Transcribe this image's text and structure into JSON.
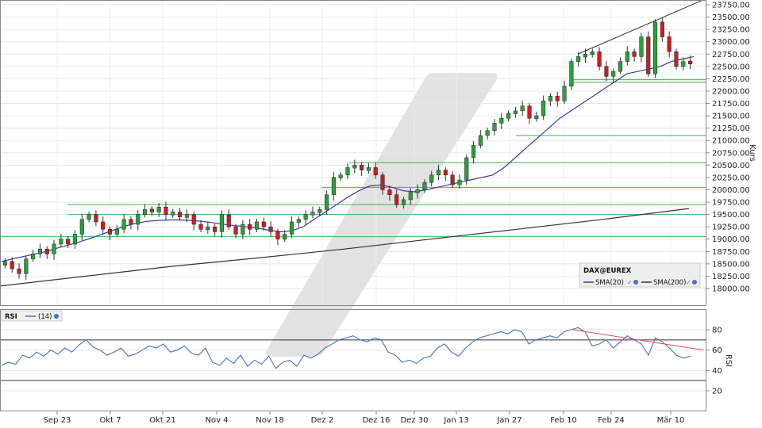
{
  "chart_data": [
    {
      "type": "candlestick",
      "instrument": "DAX@EUREX",
      "ylabel": "Kurs",
      "ylim": [
        17750,
        23800
      ],
      "y_ticks": [
        "18000.00",
        "18250.00",
        "18500.00",
        "18750.00",
        "19000.00",
        "19250.00",
        "19500.00",
        "19750.00",
        "20000.00",
        "20250.00",
        "20500.00",
        "20750.00",
        "21000.00",
        "21250.00",
        "21500.00",
        "21750.00",
        "22000.00",
        "22250.00",
        "22500.00",
        "22750.00",
        "23000.00",
        "23250.00",
        "23500.00",
        "23750.00"
      ],
      "x_labels": [
        "Sep 23",
        "Okt 7",
        "Okt 21",
        "Nov 4",
        "Nov 18",
        "Dez 2",
        "Dez 16",
        "Dez 30",
        "Jan 13",
        "Jan 27",
        "Feb 10",
        "Feb 24",
        "Mär 10"
      ],
      "legend": {
        "title": "DAX@EUREX",
        "items": [
          {
            "name": "SMA(20)",
            "color": "#3a3aa8"
          },
          {
            "name": "SMA(200)",
            "color": "#333333"
          }
        ]
      },
      "candles_close": [
        18550,
        18400,
        18300,
        18600,
        18700,
        18800,
        18700,
        18900,
        19000,
        18900,
        19100,
        19400,
        19500,
        19350,
        19200,
        19100,
        19200,
        19400,
        19300,
        19500,
        19600,
        19550,
        19650,
        19500,
        19550,
        19450,
        19500,
        19300,
        19200,
        19250,
        19150,
        19500,
        19250,
        19100,
        19300,
        19200,
        19350,
        19250,
        19150,
        19000,
        19100,
        19350,
        19400,
        19500,
        19550,
        19600,
        19900,
        20250,
        20300,
        20450,
        20500,
        20400,
        20450,
        20300,
        20000,
        19900,
        19700,
        19800,
        19950,
        20000,
        20150,
        20300,
        20400,
        20300,
        20100,
        20200,
        20650,
        20900,
        21100,
        21200,
        21350,
        21450,
        21550,
        21600,
        21700,
        21450,
        21500,
        21800,
        21900,
        21800,
        22100,
        22600,
        22700,
        22750,
        22800,
        22500,
        22300,
        22400,
        22600,
        22800,
        22700,
        23100,
        22350,
        23400,
        23100,
        22800,
        22500,
        22600,
        22550
      ],
      "candles_dir": [
        "u",
        "d",
        "d",
        "u",
        "u",
        "u",
        "d",
        "u",
        "u",
        "d",
        "u",
        "u",
        "u",
        "d",
        "d",
        "d",
        "u",
        "u",
        "d",
        "u",
        "u",
        "d",
        "u",
        "d",
        "u",
        "d",
        "u",
        "d",
        "d",
        "u",
        "d",
        "u",
        "d",
        "d",
        "u",
        "d",
        "u",
        "d",
        "d",
        "d",
        "u",
        "u",
        "u",
        "u",
        "u",
        "u",
        "u",
        "u",
        "u",
        "u",
        "u",
        "d",
        "u",
        "d",
        "d",
        "d",
        "d",
        "u",
        "u",
        "u",
        "u",
        "u",
        "u",
        "d",
        "d",
        "u",
        "u",
        "u",
        "u",
        "u",
        "u",
        "u",
        "u",
        "u",
        "u",
        "d",
        "u",
        "u",
        "u",
        "d",
        "u",
        "u",
        "u",
        "u",
        "u",
        "d",
        "d",
        "u",
        "u",
        "u",
        "d",
        "u",
        "d",
        "u",
        "d",
        "d",
        "d",
        "u",
        "d"
      ],
      "sma20": [
        18550,
        18600,
        18650,
        18700,
        18750,
        18820,
        18880,
        18950,
        19020,
        19100,
        19180,
        19260,
        19320,
        19360,
        19380,
        19390,
        19390,
        19380,
        19360,
        19330,
        19300,
        19270,
        19250,
        19220,
        19180,
        19150,
        19170,
        19250,
        19400,
        19550,
        19700,
        19850,
        19980,
        20080,
        20100,
        20050,
        19980,
        19960,
        20000,
        20050,
        20100,
        20150,
        20200,
        20250,
        20300,
        20450,
        20650,
        20850,
        21050,
        21250,
        21450,
        21600,
        21750,
        21900,
        22050,
        22200,
        22350,
        22400,
        22450,
        22500,
        22600,
        22650,
        22700
      ],
      "sma200": [
        18050,
        18250,
        18450,
        18620,
        18800,
        19000,
        19200,
        19400,
        19620
      ],
      "support_lines": [
        19050,
        19500,
        19700,
        20050,
        20550,
        21100,
        22180,
        22230
      ],
      "trend_line": {
        "from": 22750,
        "to": 23850
      }
    },
    {
      "type": "line",
      "instrument": "RSI",
      "legend": {
        "title": "RSI",
        "items": [
          {
            "name": "(14)",
            "color": "#4a6fc7"
          }
        ]
      },
      "ylabel": "RSI",
      "ylim": [
        10,
        90
      ],
      "y_ticks": [
        20,
        40,
        60,
        80
      ],
      "thresholds": [
        70,
        30
      ],
      "rsi": [
        45,
        48,
        46,
        55,
        52,
        58,
        54,
        60,
        56,
        62,
        58,
        65,
        70,
        63,
        60,
        55,
        58,
        62,
        54,
        56,
        60,
        64,
        62,
        66,
        58,
        60,
        64,
        57,
        55,
        62,
        48,
        45,
        52,
        47,
        55,
        44,
        50,
        46,
        54,
        42,
        48,
        50,
        44,
        55,
        52,
        56,
        62,
        66,
        70,
        72,
        74,
        70,
        68,
        72,
        70,
        58,
        55,
        48,
        50,
        47,
        52,
        54,
        62,
        66,
        58,
        54,
        62,
        68,
        72,
        74,
        76,
        78,
        76,
        80,
        78,
        66,
        70,
        72,
        74,
        72,
        78,
        80,
        82,
        78,
        64,
        66,
        70,
        62,
        68,
        74,
        70,
        66,
        55,
        72,
        68,
        62,
        55,
        52,
        54
      ],
      "trend_line": {
        "from": 80,
        "to": 60
      }
    }
  ]
}
